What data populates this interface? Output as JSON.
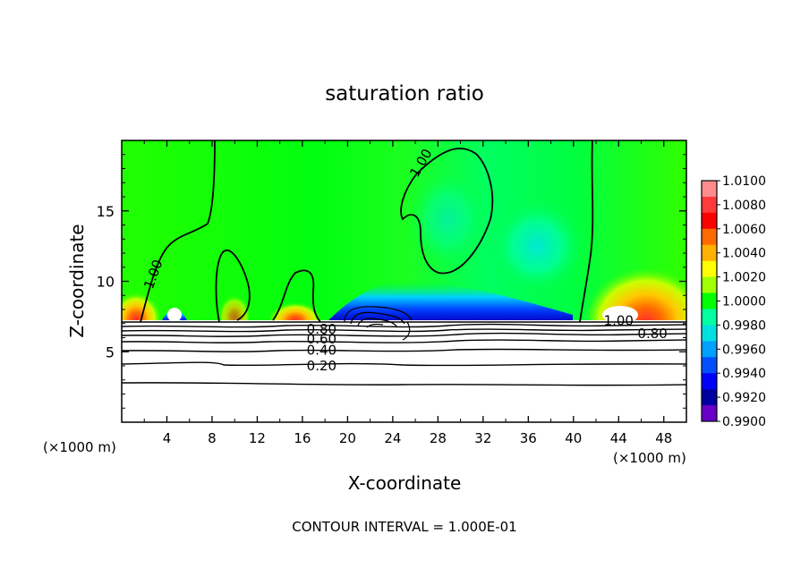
{
  "chart_data": {
    "type": "heatmap",
    "title": "saturation ratio",
    "xlabel": "X-coordinate",
    "ylabel": "Z-coordinate",
    "x_unit_left": "(×1000 m)",
    "x_unit_right": "(×1000 m)",
    "footer": "CONTOUR INTERVAL = 1.000E-01",
    "xlim": [
      0,
      50
    ],
    "ylim": [
      0,
      20
    ],
    "x_ticks": [
      4,
      8,
      12,
      16,
      20,
      24,
      28,
      32,
      36,
      40,
      44,
      48
    ],
    "y_ticks": [
      5,
      10,
      15
    ],
    "colorbar": {
      "labels": [
        "1.0100",
        "1.0080",
        "1.0060",
        "1.0040",
        "1.0020",
        "1.0000",
        "0.9980",
        "0.9960",
        "0.9940",
        "0.9920",
        "0.9900"
      ],
      "values": [
        1.01,
        1.008,
        1.006,
        1.004,
        1.002,
        1.0,
        0.998,
        0.996,
        0.994,
        0.992,
        0.99
      ],
      "colors": [
        "#ff8c8c",
        "#ff3a3a",
        "#ff0000",
        "#ff6a00",
        "#ffb000",
        "#ffff00",
        "#a0ff00",
        "#00ff00",
        "#00ffa0",
        "#00e0e0",
        "#00a0ff",
        "#0050ff",
        "#0000ff",
        "#0000a0",
        "#6a00c8"
      ]
    },
    "contour_labels": [
      {
        "text": "1.00",
        "x": 2.8,
        "z": 10.5,
        "angle": -70
      },
      {
        "text": "1.00",
        "x": 26.5,
        "z": 18.4,
        "angle": -60
      },
      {
        "text": "1.00",
        "x": 44.0,
        "z": 7.2,
        "angle": 0
      },
      {
        "text": "0.80",
        "x": 47.0,
        "z": 6.3,
        "angle": 0
      },
      {
        "text": "0.80",
        "x": 17.7,
        "z": 6.6,
        "angle": 0
      },
      {
        "text": "0.60",
        "x": 17.7,
        "z": 5.9,
        "angle": 0
      },
      {
        "text": "0.40",
        "x": 17.7,
        "z": 5.1,
        "angle": 0
      },
      {
        "text": "0.20",
        "x": 17.7,
        "z": 4.0,
        "angle": 0
      }
    ]
  }
}
